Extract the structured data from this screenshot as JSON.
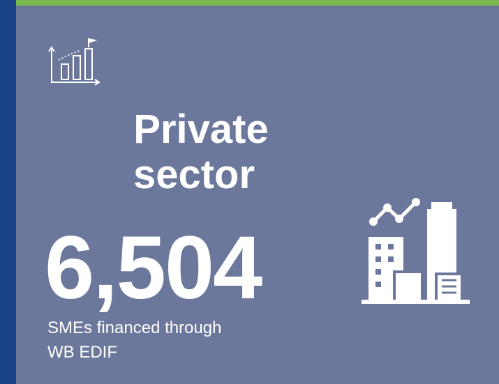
{
  "card": {
    "title": [
      "Private",
      "sector"
    ],
    "stat": "6,504",
    "caption": [
      "SMEs financed through",
      "WB EDIF"
    ]
  }
}
